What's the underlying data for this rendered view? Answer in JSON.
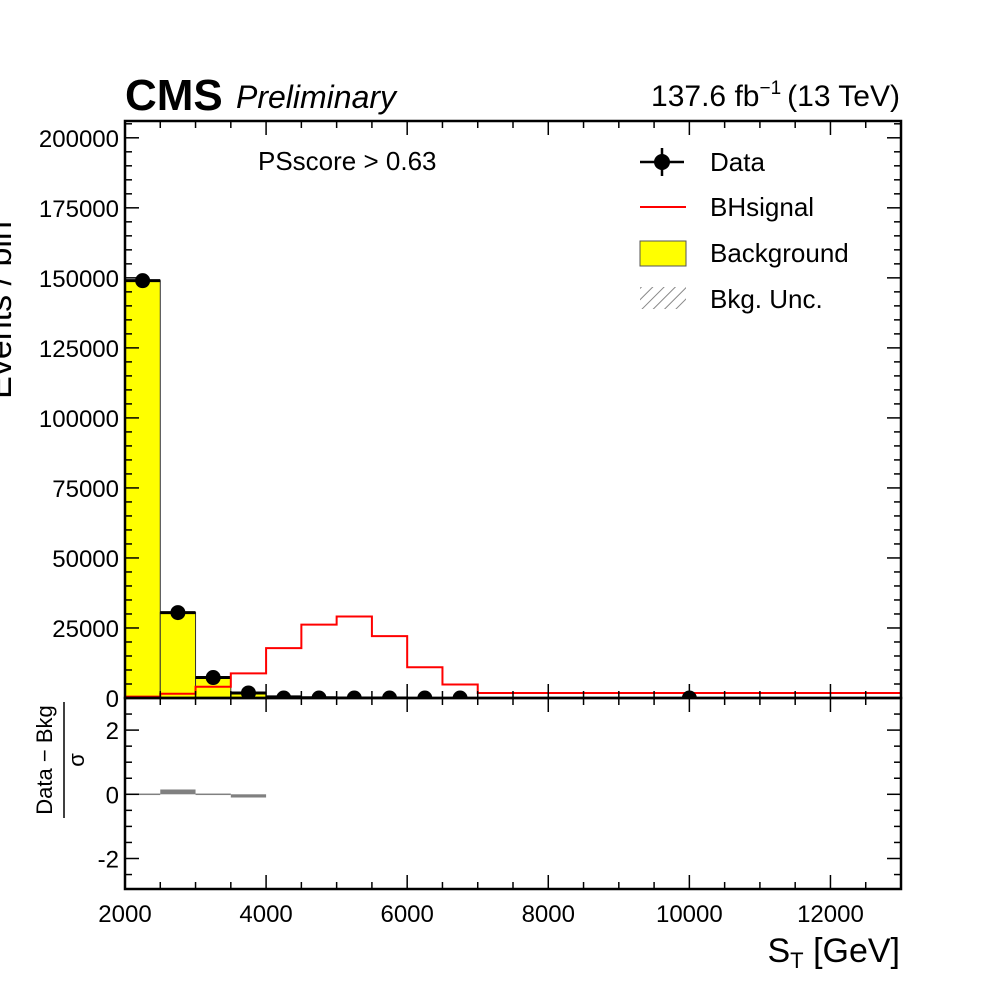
{
  "header": {
    "experiment": "CMS",
    "status": "Preliminary",
    "lumi_value": "137.6 fb",
    "lumi_exp": "−1",
    "energy": "(13 TeV)"
  },
  "annotation": "PSscore > 0.63",
  "legend": {
    "data": "Data",
    "signal": "BHsignal",
    "background": "Background",
    "unc": "Bkg. Unc."
  },
  "colors": {
    "background_fill": "#ffff00",
    "signal_line": "#ff0000",
    "data_marker": "#000000",
    "ratio_bar": "#808080"
  },
  "chart_data": [
    {
      "type": "bar",
      "panel": "main",
      "xlabel_main": "S",
      "xlabel_sub": "T",
      "xlabel_unit": " [GeV]",
      "ylabel": "Events / bin",
      "xlim": [
        2000,
        13000
      ],
      "ylim": [
        0,
        206000
      ],
      "xticks": [
        2000,
        4000,
        6000,
        8000,
        10000,
        12000
      ],
      "yticks": [
        0,
        25000,
        50000,
        75000,
        100000,
        125000,
        150000,
        175000,
        200000
      ],
      "bin_edges": [
        2000,
        2500,
        3000,
        3500,
        4000,
        4500,
        5000,
        5500,
        6000,
        6500,
        7000,
        13000
      ],
      "series": [
        {
          "name": "Background",
          "kind": "filled-hist",
          "values": [
            149000,
            30500,
            7300,
            1800,
            400,
            80,
            20,
            5,
            0,
            0,
            0
          ]
        },
        {
          "name": "BHsignal",
          "kind": "step-line",
          "values": [
            500,
            1500,
            4000,
            8800,
            17800,
            26200,
            29100,
            22100,
            11000,
            4800,
            1800
          ]
        },
        {
          "name": "Data",
          "kind": "points",
          "x": [
            2250,
            2750,
            3250,
            3750,
            4250,
            4750,
            5250,
            5750,
            6250,
            6750,
            10000
          ],
          "values": [
            149000,
            30500,
            7300,
            1800,
            0,
            0,
            0,
            0,
            0,
            0,
            0
          ]
        }
      ]
    },
    {
      "type": "bar",
      "panel": "ratio",
      "ylabel_num": "Data − Bkg",
      "ylabel_den": "σ",
      "ylim": [
        -2.95,
        3.0
      ],
      "yticks": [
        -2,
        0,
        2
      ],
      "bin_edges": [
        2000,
        2500,
        3000,
        3500,
        4000
      ],
      "values": [
        0.0,
        0.15,
        0.0,
        -0.1
      ]
    }
  ]
}
